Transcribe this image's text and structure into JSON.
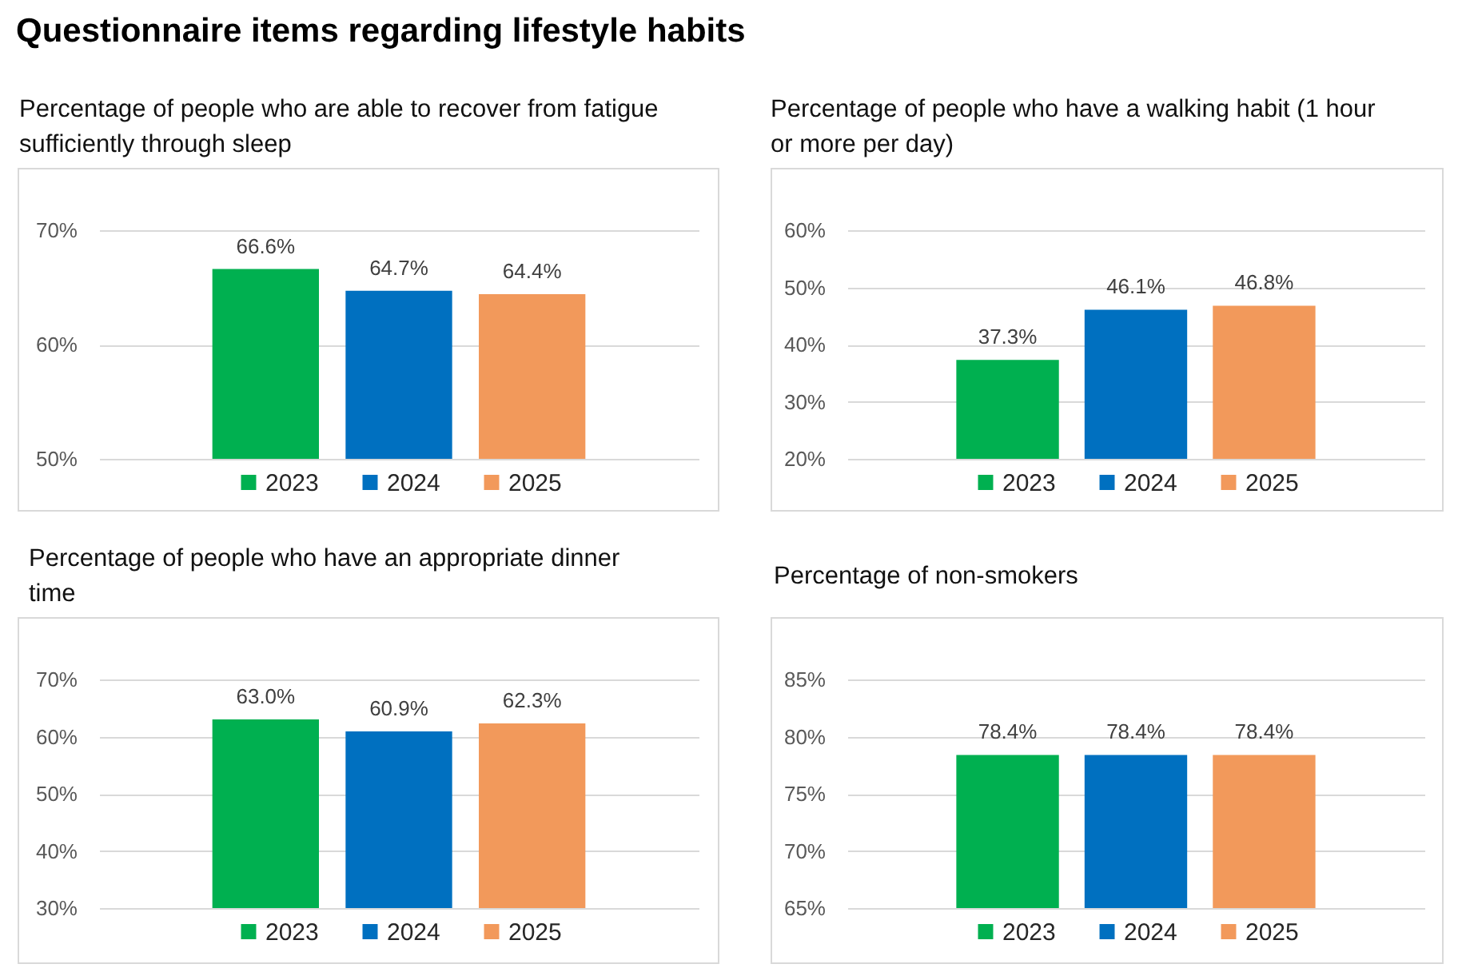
{
  "chart_data": [
    {
      "type": "other",
      "title": "Questionnaire items regarding lifestyle habits"
    },
    {
      "type": "bar",
      "title": "Percentage of people who are able to recover from fatigue sufficiently through sleep",
      "categories": [
        null
      ],
      "series": [
        {
          "name": "2023",
          "color": "#00b050",
          "values": [
            66.6
          ],
          "value_labels": [
            "66.6%"
          ]
        },
        {
          "name": "2024",
          "color": "#0070c0",
          "values": [
            64.7
          ],
          "value_labels": [
            "64.7%"
          ]
        },
        {
          "name": "2025",
          "color": "#f2995b",
          "values": [
            64.4
          ],
          "value_labels": [
            "64.4%"
          ]
        }
      ],
      "ylim": [
        50,
        70
      ],
      "yticks": [
        {
          "value": 50,
          "label": "50%"
        },
        {
          "value": 60,
          "label": "60%"
        },
        {
          "value": 70,
          "label": "70%"
        }
      ],
      "grid": "y",
      "legend": "bottom"
    },
    {
      "type": "bar",
      "title": "Percentage of people who have a walking habit (1 hour or more per day)",
      "categories": [
        null
      ],
      "series": [
        {
          "name": "2023",
          "color": "#00b050",
          "values": [
            37.3
          ],
          "value_labels": [
            "37.3%"
          ]
        },
        {
          "name": "2024",
          "color": "#0070c0",
          "values": [
            46.1
          ],
          "value_labels": [
            "46.1%"
          ]
        },
        {
          "name": "2025",
          "color": "#f2995b",
          "values": [
            46.8
          ],
          "value_labels": [
            "46.8%"
          ]
        }
      ],
      "ylim": [
        20,
        60
      ],
      "yticks": [
        {
          "value": 20,
          "label": "20%"
        },
        {
          "value": 30,
          "label": "30%"
        },
        {
          "value": 40,
          "label": "40%"
        },
        {
          "value": 50,
          "label": "50%"
        },
        {
          "value": 60,
          "label": "60%"
        }
      ],
      "grid": "y",
      "legend": "bottom"
    },
    {
      "type": "bar",
      "title": "Percentage of people who have an appropriate dinner time",
      "categories": [
        null
      ],
      "series": [
        {
          "name": "2023",
          "color": "#00b050",
          "values": [
            63.0
          ],
          "value_labels": [
            "63.0%"
          ]
        },
        {
          "name": "2024",
          "color": "#0070c0",
          "values": [
            60.9
          ],
          "value_labels": [
            "60.9%"
          ]
        },
        {
          "name": "2025",
          "color": "#f2995b",
          "values": [
            62.3
          ],
          "value_labels": [
            "62.3%"
          ]
        }
      ],
      "ylim": [
        30,
        70
      ],
      "yticks": [
        {
          "value": 30,
          "label": "30%"
        },
        {
          "value": 40,
          "label": "40%"
        },
        {
          "value": 50,
          "label": "50%"
        },
        {
          "value": 60,
          "label": "60%"
        },
        {
          "value": 70,
          "label": "70%"
        }
      ],
      "grid": "y",
      "legend": "bottom"
    },
    {
      "type": "bar",
      "title": "Percentage of non-smokers",
      "categories": [
        null
      ],
      "series": [
        {
          "name": "2023",
          "color": "#00b050",
          "values": [
            78.4
          ],
          "value_labels": [
            "78.4%"
          ]
        },
        {
          "name": "2024",
          "color": "#0070c0",
          "values": [
            78.4
          ],
          "value_labels": [
            "78.4%"
          ]
        },
        {
          "name": "2025",
          "color": "#f2995b",
          "values": [
            78.4
          ],
          "value_labels": [
            "78.4%"
          ]
        }
      ],
      "ylim": [
        65,
        85
      ],
      "yticks": [
        {
          "value": 65,
          "label": "65%"
        },
        {
          "value": 70,
          "label": "70%"
        },
        {
          "value": 75,
          "label": "75%"
        },
        {
          "value": 80,
          "label": "80%"
        },
        {
          "value": 85,
          "label": "85%"
        }
      ],
      "grid": "y",
      "legend": "bottom"
    }
  ]
}
